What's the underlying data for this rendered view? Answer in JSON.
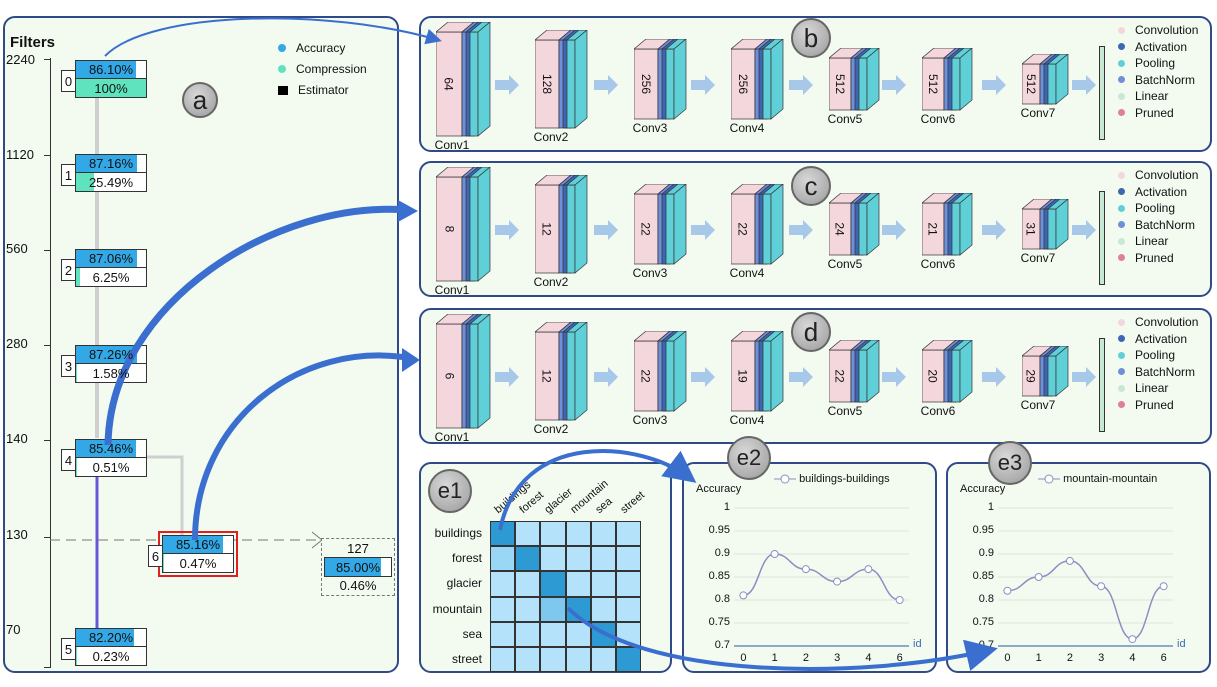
{
  "panel_a": {
    "badge": "a",
    "axis_title": "Filters",
    "ticks": [
      "2240",
      "1120",
      "560",
      "280",
      "140",
      "130",
      "70"
    ],
    "legend": {
      "accuracy": "Accuracy",
      "compression": "Compression",
      "estimator": "Estimator"
    },
    "nodes": [
      {
        "idx": "0",
        "acc": "86.10%",
        "cmp": "100%",
        "acc_frac": 0.861,
        "cmp_frac": 1.0
      },
      {
        "idx": "1",
        "acc": "87.16%",
        "cmp": "25.49%",
        "acc_frac": 0.8716,
        "cmp_frac": 0.2549
      },
      {
        "idx": "2",
        "acc": "87.06%",
        "cmp": "6.25%",
        "acc_frac": 0.8706,
        "cmp_frac": 0.0625
      },
      {
        "idx": "3",
        "acc": "87.26%",
        "cmp": "1.58%",
        "acc_frac": 0.8726,
        "cmp_frac": 0.0158
      },
      {
        "idx": "4",
        "acc": "85.46%",
        "cmp": "0.51%",
        "acc_frac": 0.8546,
        "cmp_frac": 0.0051
      },
      {
        "idx": "5",
        "acc": "82.20%",
        "cmp": "0.23%",
        "acc_frac": 0.822,
        "cmp_frac": 0.0023
      },
      {
        "idx": "6",
        "acc": "85.16%",
        "cmp": "0.47%",
        "acc_frac": 0.8516,
        "cmp_frac": 0.0047
      }
    ],
    "estimator": {
      "filters": "127",
      "acc": "85.00%",
      "cmp": "0.46%",
      "acc_frac": 0.85
    }
  },
  "legend_layers": [
    "Convolution",
    "Activation",
    "Pooling",
    "BatchNorm",
    "Linear",
    "Pruned"
  ],
  "colors": {
    "accuracy": "#33a8e6",
    "compression": "#5fe3bf",
    "conv": "#f4d6dd",
    "activation": "#3d67b3",
    "pooling": "#5fd0d8",
    "batchnorm": "#6f8fd8",
    "linear": "#c7e9d3",
    "pruned": "#e07f95",
    "panel_border": "#2f4a86",
    "panel_bg": "#f3fbf1"
  },
  "panel_b": {
    "badge": "b",
    "layers": [
      {
        "n": "64",
        "name": "Conv1"
      },
      {
        "n": "128",
        "name": "Conv2"
      },
      {
        "n": "256",
        "name": "Conv3"
      },
      {
        "n": "256",
        "name": "Conv4"
      },
      {
        "n": "512",
        "name": "Conv5"
      },
      {
        "n": "512",
        "name": "Conv6"
      },
      {
        "n": "512",
        "name": "Conv7"
      }
    ]
  },
  "panel_c": {
    "badge": "c",
    "layers": [
      {
        "n": "8",
        "name": "Conv1"
      },
      {
        "n": "12",
        "name": "Conv2"
      },
      {
        "n": "22",
        "name": "Conv3"
      },
      {
        "n": "22",
        "name": "Conv4"
      },
      {
        "n": "24",
        "name": "Conv5"
      },
      {
        "n": "21",
        "name": "Conv6"
      },
      {
        "n": "31",
        "name": "Conv7"
      }
    ]
  },
  "panel_d": {
    "badge": "d",
    "layers": [
      {
        "n": "6",
        "name": "Conv1"
      },
      {
        "n": "12",
        "name": "Conv2"
      },
      {
        "n": "22",
        "name": "Conv3"
      },
      {
        "n": "19",
        "name": "Conv4"
      },
      {
        "n": "22",
        "name": "Conv5"
      },
      {
        "n": "20",
        "name": "Conv6"
      },
      {
        "n": "29",
        "name": "Conv7"
      }
    ]
  },
  "panel_e1": {
    "badge": "e1",
    "rows": [
      "buildings",
      "forest",
      "glacier",
      "mountain",
      "sea",
      "street"
    ],
    "cols": [
      "buildings",
      "forest",
      "glacier",
      "mountain",
      "sea",
      "street"
    ]
  },
  "panel_e2": {
    "badge": "e2",
    "ylabel": "Accuracy",
    "xlabel": "id",
    "series": "buildings-buildings",
    "yticks": [
      "1",
      "0.95",
      "0.9",
      "0.85",
      "0.8",
      "0.75",
      "0.7"
    ],
    "x": [
      "0",
      "1",
      "2",
      "3",
      "4",
      "6"
    ],
    "values": [
      0.81,
      0.9,
      0.867,
      0.84,
      0.867,
      0.8
    ]
  },
  "panel_e3": {
    "badge": "e3",
    "ylabel": "Accuracy",
    "xlabel": "id",
    "series": "mountain-mountain",
    "yticks": [
      "1",
      "0.95",
      "0.9",
      "0.85",
      "0.8",
      "0.75",
      "0.7"
    ],
    "x": [
      "0",
      "1",
      "2",
      "3",
      "4",
      "6"
    ],
    "values": [
      0.82,
      0.85,
      0.885,
      0.83,
      0.715,
      0.83
    ]
  },
  "chart_data": [
    {
      "type": "line",
      "series": [
        {
          "name": "buildings-buildings",
          "values": [
            0.81,
            0.9,
            0.867,
            0.84,
            0.867,
            0.8
          ]
        }
      ],
      "x": [
        "0",
        "1",
        "2",
        "3",
        "4",
        "6"
      ],
      "ylabel": "Accuracy",
      "xlabel": "id",
      "ylim": [
        0.7,
        1
      ]
    },
    {
      "type": "line",
      "series": [
        {
          "name": "mountain-mountain",
          "values": [
            0.82,
            0.85,
            0.885,
            0.83,
            0.715,
            0.83
          ]
        }
      ],
      "x": [
        "0",
        "1",
        "2",
        "3",
        "4",
        "6"
      ],
      "ylabel": "Accuracy",
      "xlabel": "id",
      "ylim": [
        0.7,
        1
      ]
    }
  ]
}
